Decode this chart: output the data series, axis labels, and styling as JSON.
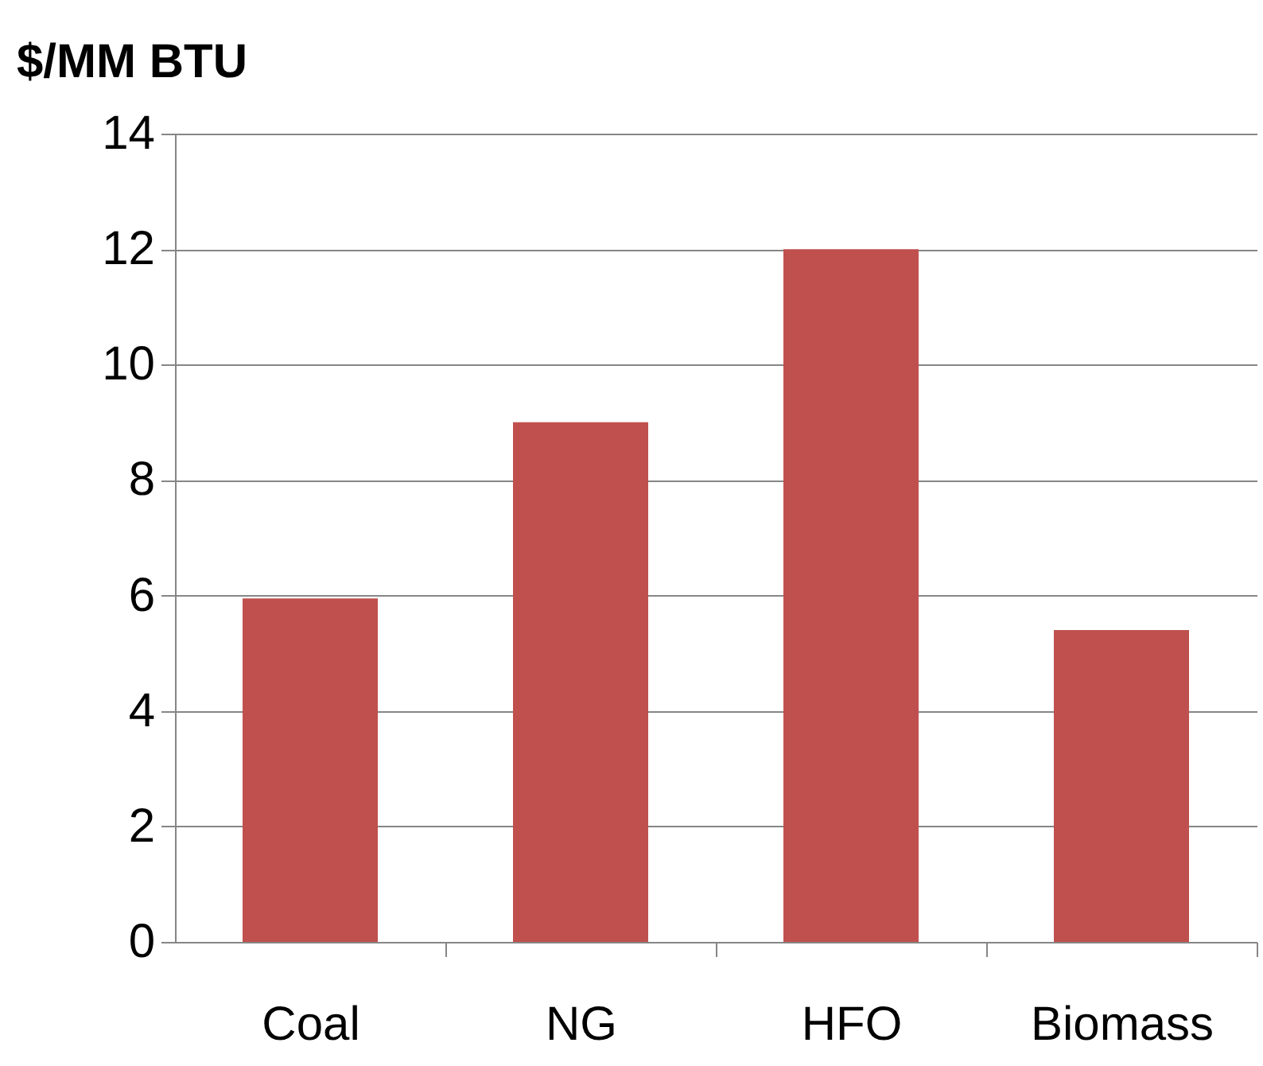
{
  "chart_data": {
    "type": "bar",
    "ylabel": "$/MM BTU",
    "categories": [
      "Coal",
      "NG",
      "HFO",
      "Biomass"
    ],
    "values": [
      5.95,
      9,
      12,
      5.4
    ],
    "color": "#c0504d",
    "ylim": [
      0,
      14
    ],
    "yticks": [
      0,
      2,
      4,
      6,
      8,
      10,
      12,
      14
    ],
    "grid": "y"
  }
}
